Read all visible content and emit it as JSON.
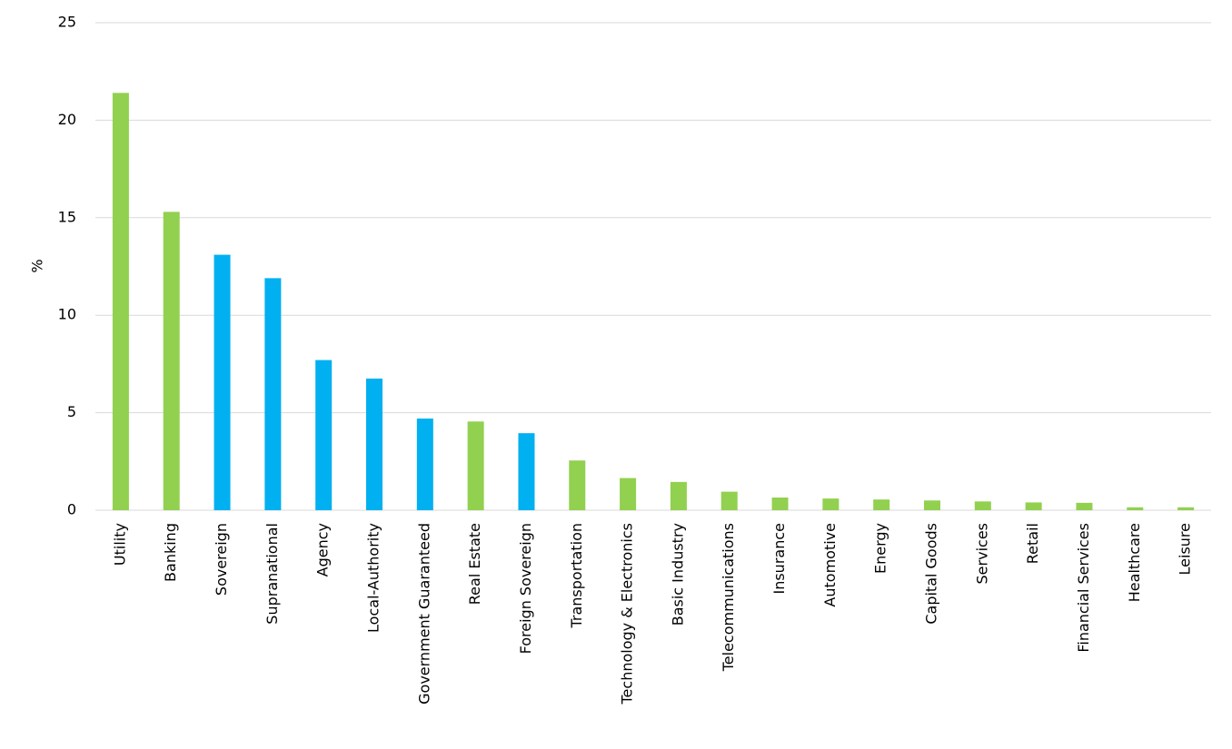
{
  "chart_data": {
    "type": "bar",
    "ylabel": "%",
    "categories": [
      "Utility",
      "Banking",
      "Sovereign",
      "Supranational",
      "Agency",
      "Local-Authority",
      "Government Guaranteed",
      "Real Estate",
      "Foreign Sovereign",
      "Transportation",
      "Technology & Electronics",
      "Basic Industry",
      "Telecommunications",
      "Insurance",
      "Automotive",
      "Energy",
      "Capital Goods",
      "Services",
      "Retail",
      "Financial Services",
      "Healthcare",
      "Leisure"
    ],
    "values": [
      21.4,
      15.3,
      13.1,
      11.9,
      7.7,
      6.75,
      4.7,
      4.55,
      3.95,
      2.55,
      1.65,
      1.45,
      0.95,
      0.65,
      0.6,
      0.55,
      0.5,
      0.45,
      0.4,
      0.38,
      0.15,
      0.15
    ],
    "colors": [
      "#92d050",
      "#92d050",
      "#00b0f0",
      "#00b0f0",
      "#00b0f0",
      "#00b0f0",
      "#00b0f0",
      "#92d050",
      "#00b0f0",
      "#92d050",
      "#92d050",
      "#92d050",
      "#92d050",
      "#92d050",
      "#92d050",
      "#92d050",
      "#92d050",
      "#92d050",
      "#92d050",
      "#92d050",
      "#92d050",
      "#92d050"
    ],
    "ylim": [
      0,
      25
    ],
    "yticks": [
      0,
      5,
      10,
      15,
      20,
      25
    ],
    "grid": true
  }
}
